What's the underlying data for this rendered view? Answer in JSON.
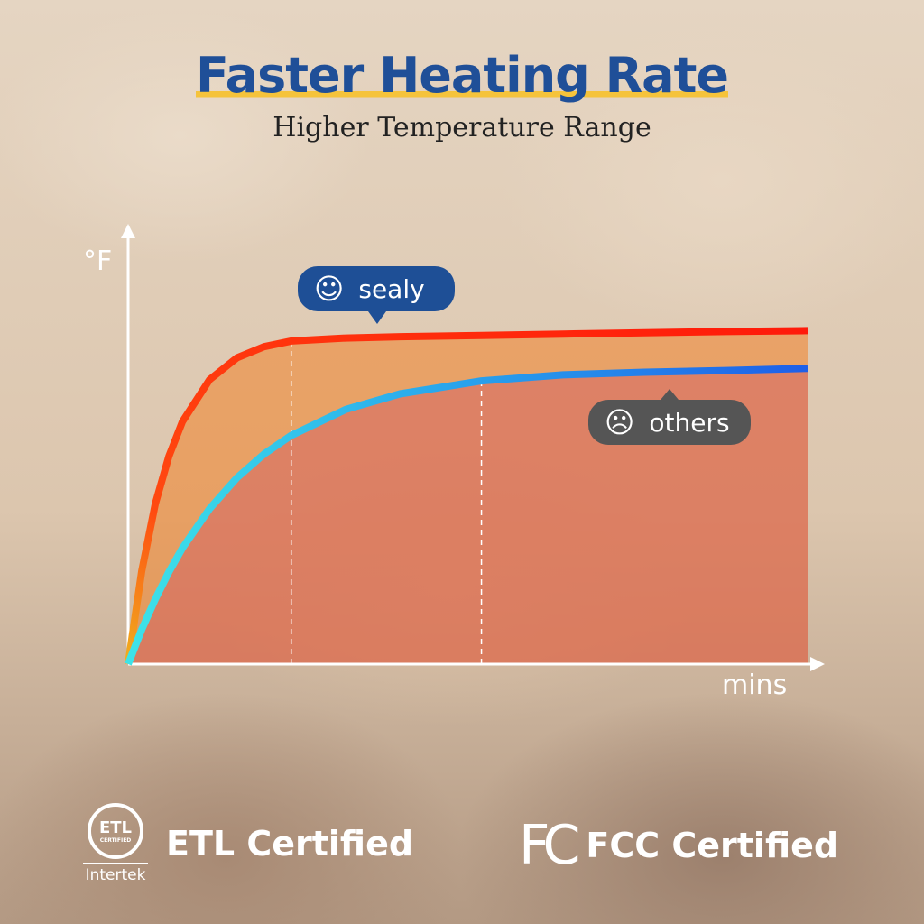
{
  "header": {
    "title": "Faster Heating Rate",
    "subtitle": "Higher Temperature Range"
  },
  "colors": {
    "title": "#1f4f98",
    "underline": "#f5c33b",
    "sealy_start": "#f0b020",
    "sealy_end": "#ff1a0a",
    "others_start": "#3ee3e8",
    "others_end": "#1f5fe8",
    "sealy_badge": "#1e4f96",
    "others_badge": "#555555"
  },
  "chart_data": {
    "type": "line",
    "xlabel": "mins",
    "ylabel": "°F",
    "grid": false,
    "x": [
      0,
      2,
      4,
      6,
      8,
      12,
      16,
      20,
      24,
      32,
      40,
      52,
      64,
      76,
      88,
      100
    ],
    "series": [
      {
        "name": "sealy",
        "icon": "smiley-icon",
        "values": [
          0,
          21.5,
          37.0,
          48.0,
          56.0,
          65.7,
          70.7,
          73.3,
          74.6,
          75.3,
          75.6,
          75.9,
          76.2,
          76.5,
          76.8,
          77.0
        ]
      },
      {
        "name": "others",
        "icon": "sad-face-icon",
        "values": [
          0,
          8.0,
          15.0,
          21.3,
          26.8,
          35.9,
          43.0,
          48.5,
          52.8,
          58.8,
          62.4,
          65.4,
          66.8,
          67.4,
          67.8,
          68.3
        ]
      }
    ],
    "markers_x": [
      24,
      52
    ],
    "xlim": [
      0,
      100
    ],
    "ylim": [
      0,
      100
    ]
  },
  "badges": {
    "sealy": "sealy",
    "others": "others",
    "sealy_face": "☺",
    "others_face": "☹"
  },
  "certs": {
    "etl_label": "ETL Certified",
    "etl_logo": "ETL",
    "etl_logo_sub": "CERTIFIED",
    "etl_brand": "Intertek",
    "fcc_label": "FCC Certified",
    "fcc_logo": "FC"
  }
}
